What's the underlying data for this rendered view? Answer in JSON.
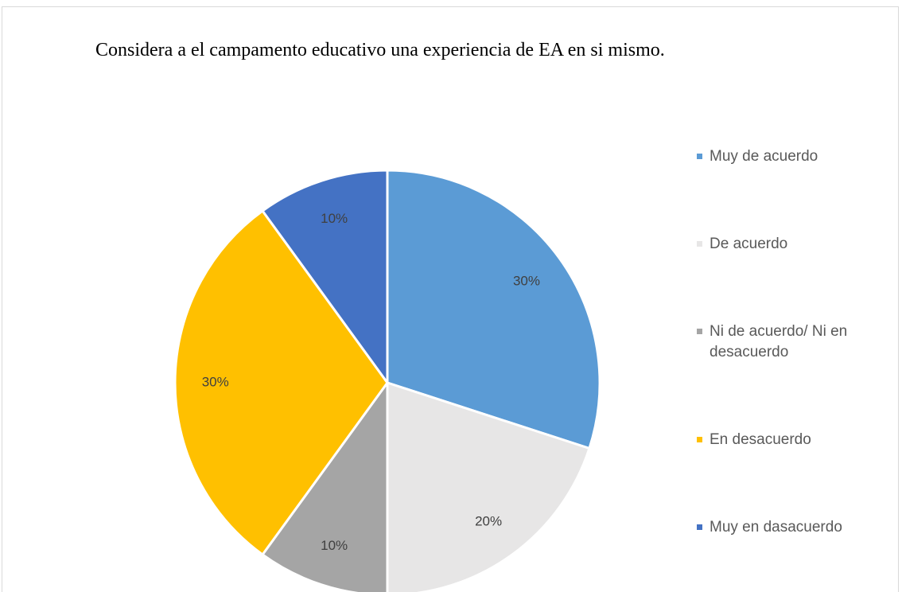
{
  "chart_data": {
    "type": "pie",
    "title": "Considera a el campamento educativo una experiencia de EA en si mismo.",
    "categories": [
      "Muy de acuerdo",
      "De acuerdo",
      "Ni de acuerdo/ Ni en desacuerdo",
      "En desacuerdo",
      "Muy en dasacuerdo"
    ],
    "values": [
      30,
      20,
      10,
      30,
      10
    ],
    "value_labels": [
      "30%",
      "20%",
      "10%",
      "30%",
      "10%"
    ],
    "colors": [
      "#5b9bd5",
      "#e7e6e6",
      "#a5a5a5",
      "#ffc000",
      "#4472c4"
    ],
    "legend": "right"
  }
}
